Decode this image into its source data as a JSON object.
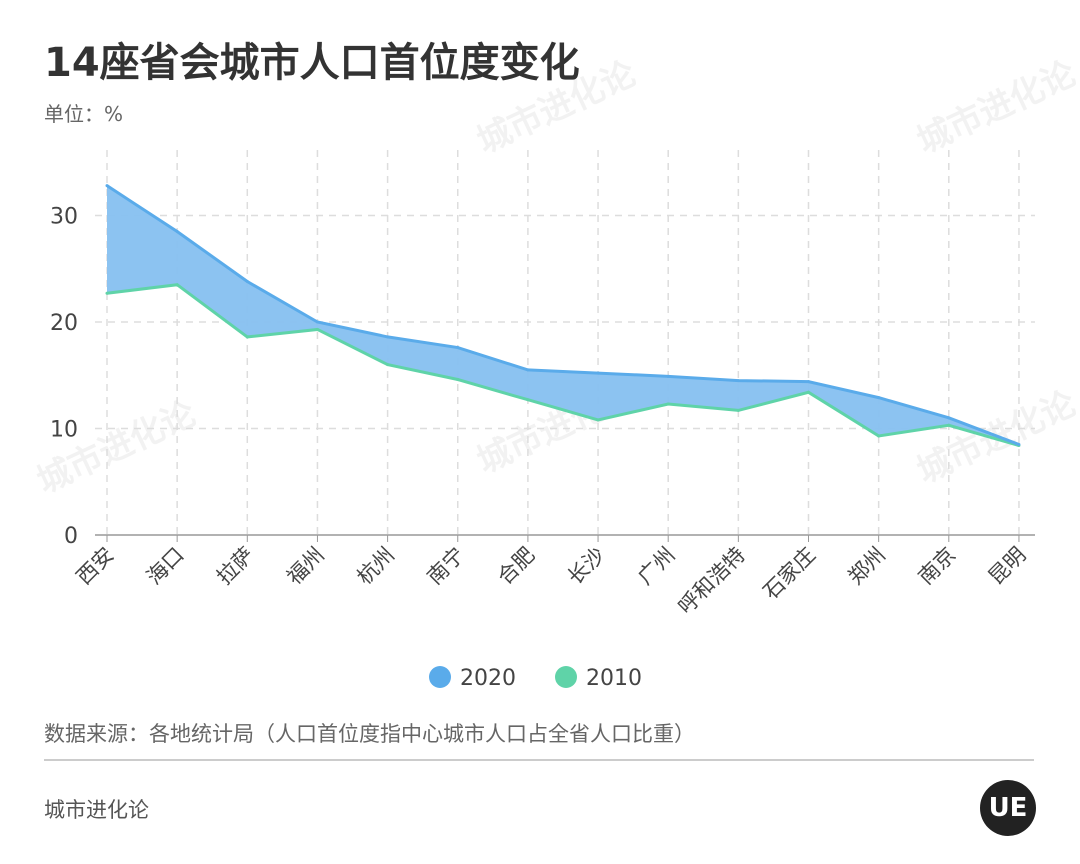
{
  "title": "14座省会城市人口首位度变化",
  "unit": "单位：%",
  "source": "数据来源：各地统计局（人口首位度指中心城市人口占全省人口比重）",
  "brand": "城市进化论",
  "logo_text": "UE",
  "watermark": "城市进化论",
  "chart_data": {
    "type": "area",
    "title": "14座省会城市人口首位度变化",
    "ylabel": "单位：%",
    "ylim": [
      0,
      35
    ],
    "yticks": [
      0,
      10,
      20,
      30
    ],
    "grid": true,
    "legend_position": "bottom",
    "categories": [
      "西安",
      "海口",
      "拉萨",
      "福州",
      "杭州",
      "南宁",
      "合肥",
      "长沙",
      "广州",
      "呼和浩特",
      "石家庄",
      "郑州",
      "南京",
      "昆明"
    ],
    "series": [
      {
        "name": "2020",
        "color": "#5aabea",
        "values": [
          32.8,
          28.5,
          23.8,
          20.0,
          18.6,
          17.6,
          15.5,
          15.2,
          14.9,
          14.5,
          14.4,
          12.9,
          11.0,
          8.5
        ]
      },
      {
        "name": "2010",
        "color": "#5fd3a8",
        "values": [
          22.7,
          23.5,
          18.6,
          19.3,
          16.0,
          14.6,
          12.7,
          10.8,
          12.3,
          11.7,
          13.4,
          9.3,
          10.3,
          8.4
        ]
      }
    ],
    "fill_between_color": "#86c0f0"
  }
}
